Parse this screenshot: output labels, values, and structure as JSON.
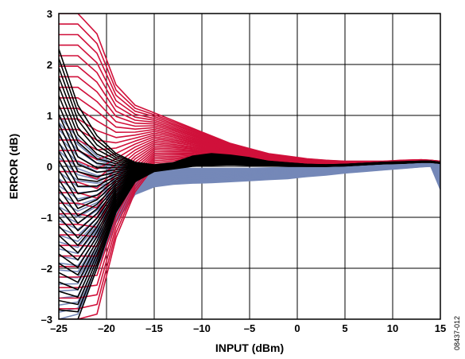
{
  "chart_data": {
    "type": "line",
    "title": "",
    "xlabel": "INPUT (dBm)",
    "ylabel": "ERROR (dB)",
    "xlim": [
      -25,
      15
    ],
    "ylim": [
      -3,
      3
    ],
    "x_ticks": [
      "–25",
      "–20",
      "–15",
      "–10",
      "–5",
      "0",
      "5",
      "10",
      "15"
    ],
    "y_ticks": [
      "–3",
      "–2",
      "–1",
      "0",
      "1",
      "2",
      "3"
    ],
    "grid": true,
    "legend": "none",
    "figure_id": "08437-012",
    "colors": {
      "red": "#d0103a",
      "blue": "#7588b8",
      "black": "#000000",
      "grid": "#000000"
    },
    "series": [
      {
        "color_key": "blue",
        "x": [
          -25,
          -23,
          -21,
          -19,
          -17,
          -15,
          -13,
          -11,
          -9,
          -7,
          -5,
          -3,
          -1,
          1,
          3,
          5,
          7,
          9,
          11,
          13,
          14,
          15
        ],
        "envelope_low": [
          -3.0,
          -2.9,
          -2.0,
          -1.1,
          -0.55,
          -0.4,
          -0.35,
          -0.33,
          -0.32,
          -0.3,
          -0.28,
          -0.26,
          -0.24,
          -0.2,
          -0.17,
          -0.13,
          -0.1,
          -0.07,
          -0.04,
          -0.01,
          0.0,
          -0.45
        ],
        "envelope_high": [
          1.0,
          0.55,
          0.2,
          0.05,
          -0.02,
          -0.02,
          -0.03,
          -0.04,
          -0.04,
          -0.04,
          -0.04,
          -0.03,
          -0.02,
          0.0,
          0.01,
          0.03,
          0.04,
          0.05,
          0.06,
          0.07,
          0.08,
          0.05
        ]
      },
      {
        "color_key": "red",
        "x": [
          -25,
          -23,
          -21,
          -19,
          -17,
          -15,
          -13,
          -11,
          -9,
          -7,
          -5,
          -3,
          -1,
          1,
          3,
          5,
          7,
          9,
          11,
          13,
          14,
          15
        ],
        "envelope_low": [
          -3.0,
          -3.0,
          -2.9,
          -1.4,
          -0.5,
          0.0,
          0.05,
          0.1,
          0.08,
          0.06,
          0.04,
          0.03,
          0.02,
          0.02,
          0.03,
          0.04,
          0.05,
          0.06,
          0.08,
          0.1,
          0.1,
          0.08
        ],
        "envelope_high": [
          3.0,
          3.0,
          2.6,
          1.6,
          1.2,
          1.05,
          0.9,
          0.75,
          0.6,
          0.45,
          0.35,
          0.25,
          0.2,
          0.15,
          0.12,
          0.1,
          0.1,
          0.1,
          0.12,
          0.13,
          0.12,
          0.1
        ]
      },
      {
        "color_key": "black",
        "x": [
          -25,
          -23,
          -21,
          -19,
          -17,
          -15,
          -13,
          -11,
          -9,
          -7,
          -5,
          -3,
          -1,
          1,
          3,
          5,
          7,
          9,
          11,
          13,
          14,
          15
        ],
        "envelope_low": [
          -3.0,
          -3.0,
          -2.0,
          -0.9,
          -0.3,
          -0.1,
          -0.05,
          0.0,
          0.02,
          0.03,
          0.02,
          0.01,
          0.0,
          0.0,
          0.0,
          0.01,
          0.03,
          0.05,
          0.06,
          0.08,
          0.08,
          0.06
        ],
        "envelope_high": [
          2.3,
          1.2,
          0.6,
          0.25,
          0.08,
          0.03,
          0.07,
          0.2,
          0.25,
          0.22,
          0.17,
          0.1,
          0.07,
          0.04,
          0.03,
          0.04,
          0.06,
          0.08,
          0.09,
          0.1,
          0.1,
          0.08
        ]
      }
    ]
  }
}
